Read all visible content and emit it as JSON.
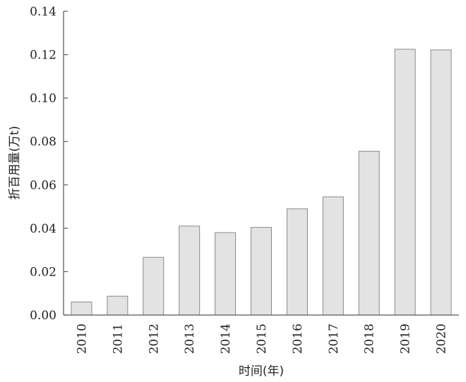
{
  "chart_data": {
    "type": "bar",
    "title": "",
    "xlabel": "时间(年)",
    "ylabel": "折百用量(万t)",
    "categories": [
      "2010",
      "2011",
      "2012",
      "2013",
      "2014",
      "2015",
      "2016",
      "2017",
      "2018",
      "2019",
      "2020"
    ],
    "values": [
      0.006,
      0.0087,
      0.0266,
      0.041,
      0.038,
      0.0404,
      0.049,
      0.0545,
      0.0755,
      0.1225,
      0.1222
    ],
    "ylim": [
      0,
      0.14
    ],
    "yticks": [
      "0.00",
      "0.02",
      "0.04",
      "0.06",
      "0.08",
      "0.10",
      "0.12",
      "0.14"
    ],
    "grid": false,
    "legend": "none",
    "colors": {
      "bar_fill": "#e3e3e3",
      "bar_stroke": "#8a8a8a",
      "axis": "#555555",
      "text": "#222222"
    }
  }
}
